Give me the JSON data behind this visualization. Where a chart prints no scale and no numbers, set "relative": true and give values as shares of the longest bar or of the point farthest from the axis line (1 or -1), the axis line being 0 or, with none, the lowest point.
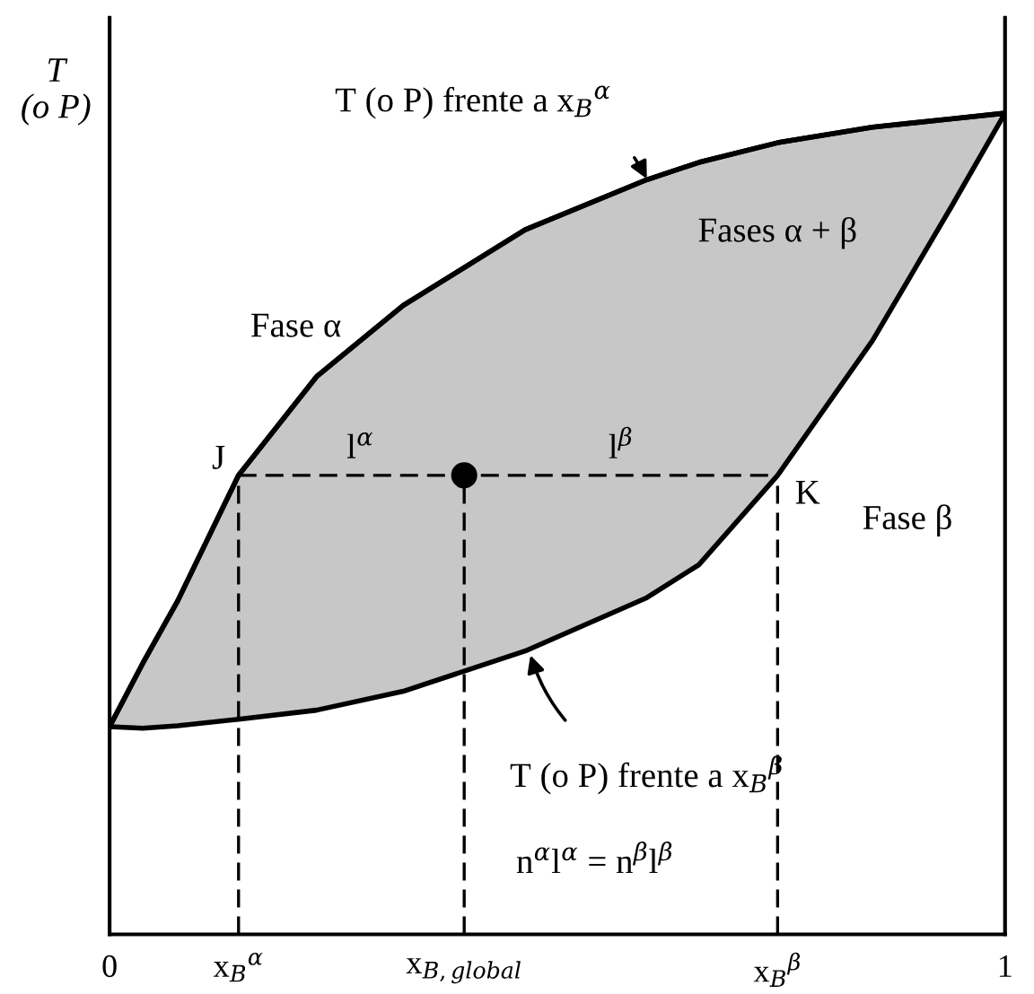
{
  "chart_data": {
    "type": "line",
    "relative": true,
    "ylabel": "T\n(o P)",
    "tick_labels": "x",
    "grid": false,
    "xlim": [
      0,
      1
    ],
    "xticks": [
      0,
      {
        "value": 0.144,
        "label": "x$_{B}$$^{α}$"
      },
      {
        "value": 0.396,
        "label": "x$_{B,global}$"
      },
      {
        "value": 0.746,
        "label": "x$_{B}$$^{β}$"
      },
      1
    ],
    "series": [
      {
        "color": "#000000",
        "line_style": "solid",
        "x": [
          0,
          0.037,
          0.076,
          0.144,
          0.231,
          0.328,
          0.464,
          0.6,
          0.658,
          0.746,
          0.852,
          0.94,
          1
        ],
        "values": [
          0.253,
          0.33,
          0.406,
          0.559,
          0.679,
          0.766,
          0.858,
          0.919,
          0.94,
          0.964,
          0.983,
          0.993,
          1
        ],
        "upper": [
          0.253,
          0.33,
          0.406,
          0.559,
          0.679,
          0.766,
          0.858,
          0.919,
          0.94,
          0.964,
          0.983,
          0.993,
          1
        ],
        "lower": [
          0.253,
          0.251,
          0.254,
          0.262,
          0.273,
          0.296,
          0.345,
          0.41,
          0.45,
          0.559,
          0.723,
          0.886,
          1
        ]
      },
      {
        "type": "line",
        "color": "#000000",
        "line_style": "dashed",
        "x": [
          0.144,
          0.746
        ],
        "values": [
          0.559,
          0.559
        ]
      },
      {
        "type": "line",
        "color": "#000000",
        "line_style": "dashed",
        "x": [
          0.144,
          0.144
        ],
        "values": [
          0,
          0.559
        ]
      },
      {
        "type": "line",
        "color": "#000000",
        "line_style": "dashed",
        "x": [
          0.396,
          0.396
        ],
        "values": [
          0,
          0.559
        ]
      },
      {
        "type": "line",
        "color": "#000000",
        "line_style": "dashed",
        "x": [
          0.746,
          0.746
        ],
        "values": [
          0,
          0.559
        ]
      },
      {
        "type": "scatter",
        "color": "#000000",
        "marker": "circle",
        "x": [
          0.396
        ],
        "values": [
          0.559
        ]
      }
    ],
    "annotations": [
      "Fase α",
      "Fases α + β",
      "Fase β",
      "l$^{α}$",
      "l$^{β}$",
      "n$^{α}$l$^{α}$ = n$^{β}$l$^{β}$",
      {
        "text": "J",
        "x": 0.144,
        "y": 0.559
      },
      {
        "text": "K",
        "x": 0.746,
        "y": 0.559
      },
      {
        "text": "T (o P) frente a x$_{B}$$^{α}$",
        "x": 0.6,
        "y": 0.92
      },
      {
        "text": "T (o P) frente a x$_{B}$$^{β}$",
        "x": 0.47,
        "y": 0.34
      }
    ]
  }
}
